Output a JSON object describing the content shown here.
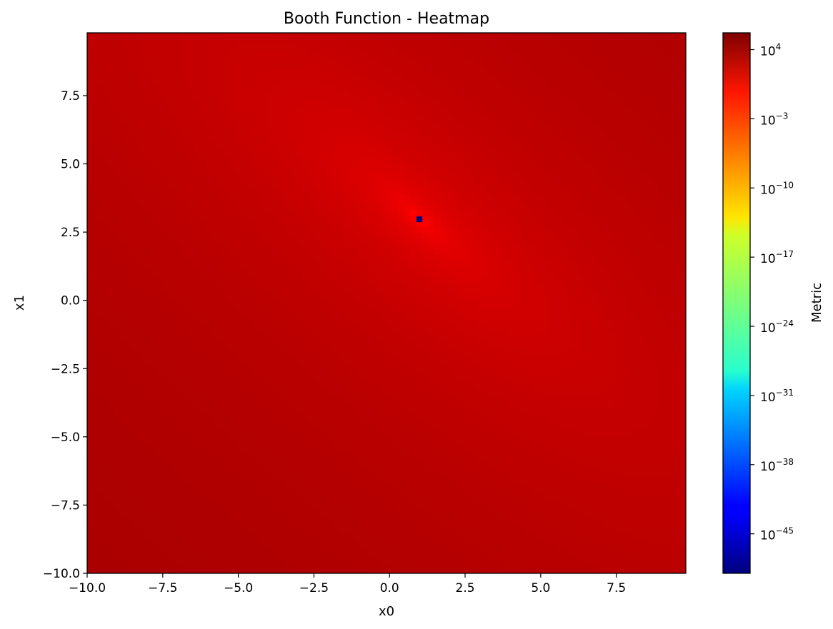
{
  "chart_data": {
    "type": "heatmap",
    "title": "Booth Function - Heatmap",
    "xlabel": "x0",
    "ylabel": "x1",
    "colorbar_label": "Metric",
    "colormap": "jet",
    "color_scale": "log",
    "function": "(x0 + 2*x1 - 7)^2 + (2*x0 + x1 - 5)^2",
    "grid": false,
    "x_range": [
      -10,
      9.8
    ],
    "y_range": [
      -10,
      9.8
    ],
    "grid_step": 0.2,
    "x_ticks": [
      -10,
      -7.5,
      -5,
      -2.5,
      0,
      2.5,
      5,
      7.5
    ],
    "x_tick_labels": [
      "−10.0",
      "−7.5",
      "−5.0",
      "−2.5",
      "0.0",
      "2.5",
      "5.0",
      "7.5"
    ],
    "y_ticks": [
      -10,
      -7.5,
      -5,
      -2.5,
      0,
      2.5,
      5,
      7.5
    ],
    "y_tick_labels": [
      "−10.0",
      "−7.5",
      "−5.0",
      "−2.5",
      "0.0",
      "2.5",
      "5.0",
      "7.5"
    ],
    "color_range_log10": [
      -49,
      5.7
    ],
    "colorbar_ticks_log10": [
      4,
      -3,
      -10,
      -17,
      -24,
      -31,
      -38,
      -45
    ],
    "colorbar_tick_bases": [
      "10",
      "10",
      "10",
      "10",
      "10",
      "10",
      "10",
      "10"
    ],
    "colorbar_tick_exponents": [
      "4",
      "−3",
      "−10",
      "−17",
      "−24",
      "−31",
      "−38",
      "−45"
    ]
  }
}
